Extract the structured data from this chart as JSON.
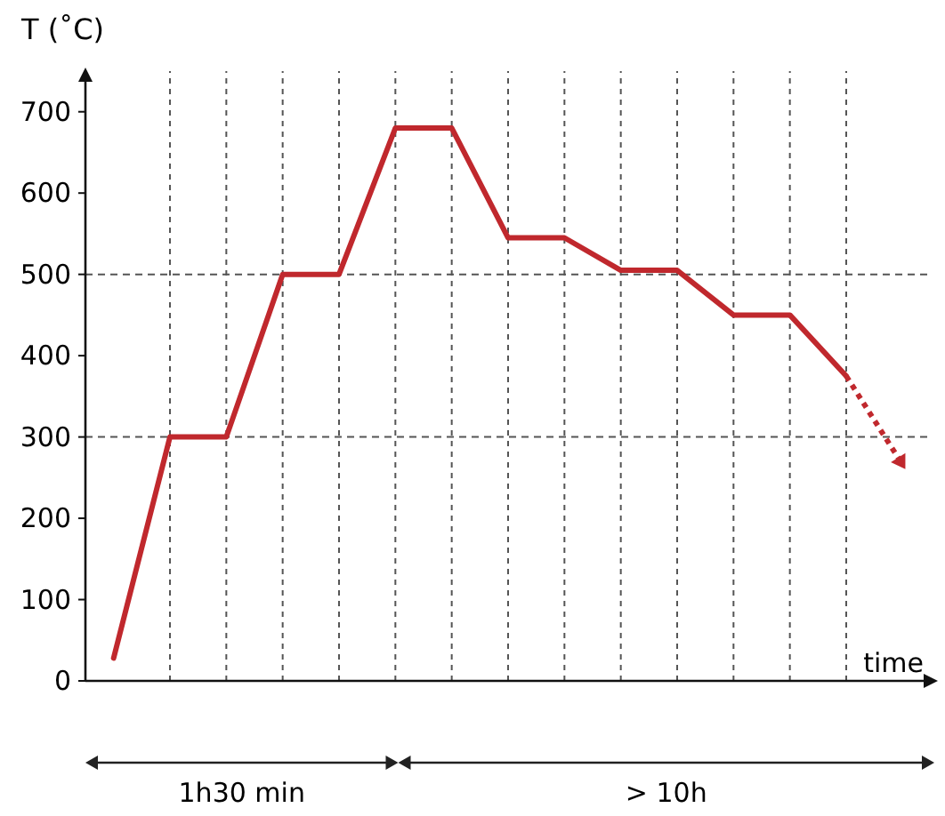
{
  "chart_data": {
    "type": "line",
    "ylabel": "T (˚C)",
    "xlabel": "time",
    "categories": [
      null,
      null,
      null,
      null,
      null,
      null,
      null,
      null,
      null,
      null,
      null,
      null,
      null,
      null,
      null
    ],
    "ylim": [
      0,
      750
    ],
    "yticks": [
      0,
      100,
      200,
      300,
      400,
      500,
      600,
      700
    ],
    "tick_labels": "y",
    "grid": "x",
    "series": [
      {
        "color": "#c0282d",
        "line_style": "solid",
        "values": [
          28,
          300,
          300,
          500,
          500,
          680,
          680,
          545,
          545,
          505,
          505,
          450,
          450,
          375,
          null
        ]
      }
    ],
    "ref_lines": [
      {
        "axis": "y",
        "value": 300,
        "line_style": "dashed"
      },
      {
        "axis": "y",
        "value": 500,
        "line_style": "dashed"
      }
    ],
    "annotations": [
      "1h30 min",
      "> 10h"
    ]
  }
}
